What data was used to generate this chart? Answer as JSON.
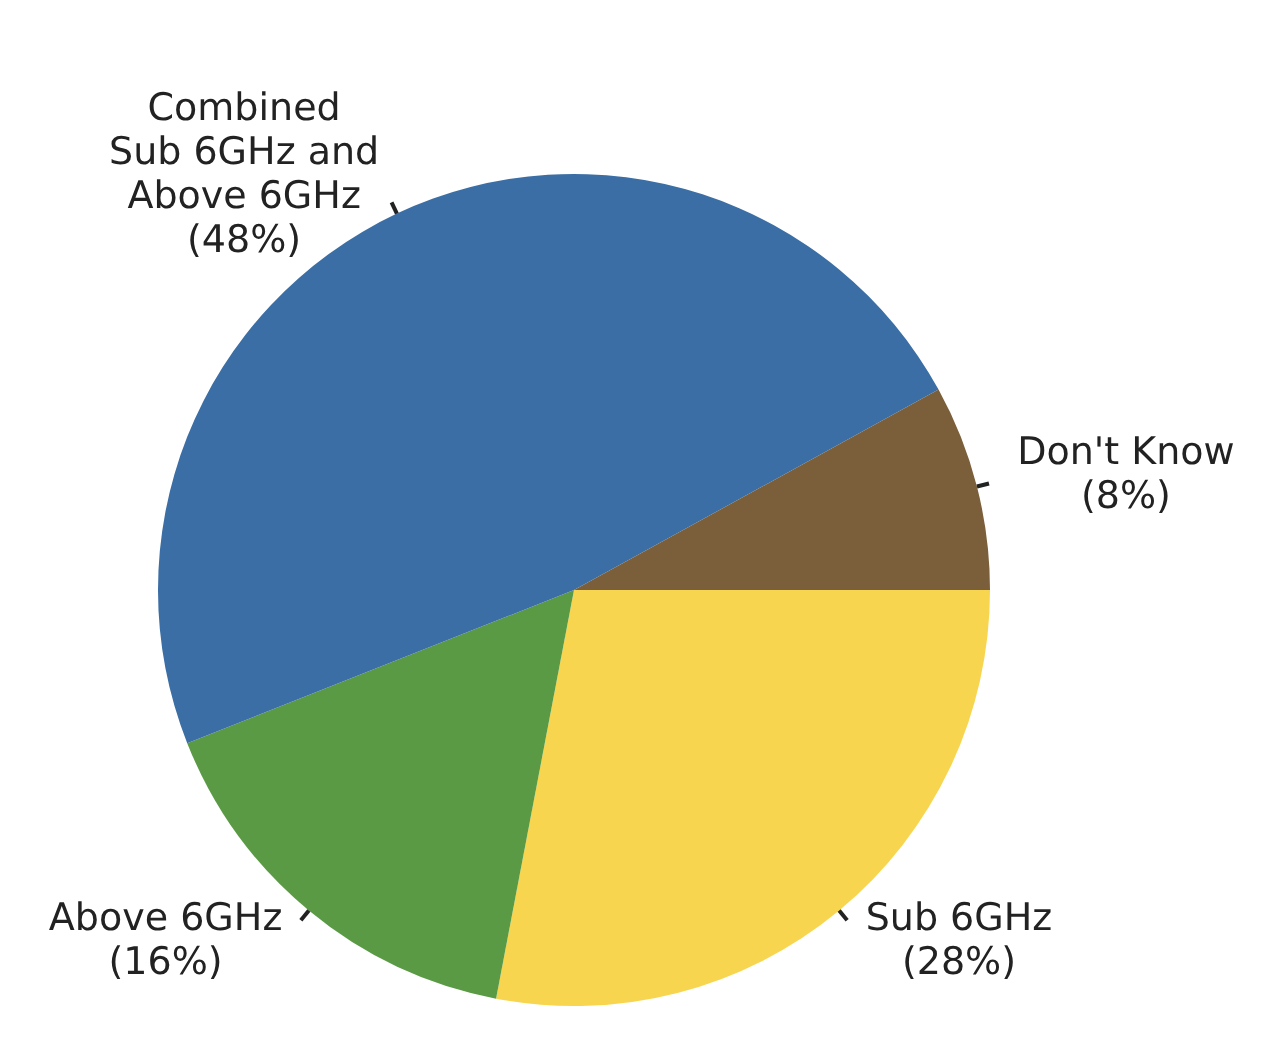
{
  "chart_data": {
    "type": "pie",
    "categories": [
      "Sub 6GHz",
      "Above 6GHz",
      "Combined\nSub 6GHz and\nAbove 6GHz",
      "Don't Know"
    ],
    "values": [
      28,
      16,
      48,
      8
    ],
    "value_labels": [
      "(28%)",
      "(16%)",
      "(48%)",
      "(8%)"
    ],
    "colors": [
      "#f8d54f",
      "#5a9a45",
      "#3a6ea5",
      "#7a5f3a"
    ],
    "legend": false
  }
}
